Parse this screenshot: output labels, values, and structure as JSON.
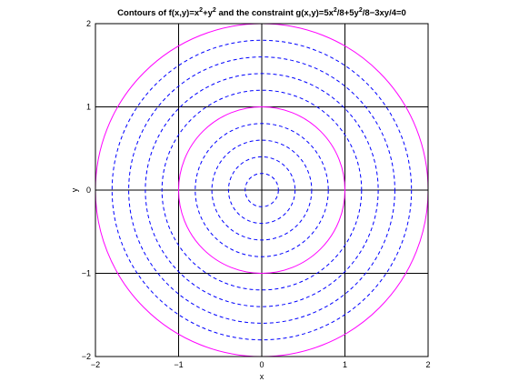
{
  "chart_data": {
    "type": "contour",
    "title": {
      "prefix": "Contours of f(x,y)=x",
      "sup1": "2",
      "mid1": "+y",
      "sup2": "2",
      "mid2": " and the constraint g(x,y)=5x",
      "sup3": "2",
      "mid3": "/8+5y",
      "sup4": "2",
      "suffix": "/8−3xy/4=0"
    },
    "xlabel": "x",
    "ylabel": "y",
    "xlim": [
      -2,
      2
    ],
    "ylim": [
      -2,
      2
    ],
    "xticks": [
      -2,
      -1,
      0,
      1,
      2
    ],
    "yticks": [
      -2,
      -1,
      0,
      1,
      2
    ],
    "xtick_labels": [
      "−2",
      "−1",
      "0",
      "1",
      "2"
    ],
    "ytick_labels": [
      "−2",
      "−1",
      "0",
      "1",
      "2"
    ],
    "grid": true,
    "series": [
      {
        "style": "solid",
        "color": "#ff00ff",
        "radii": [
          1,
          2
        ]
      },
      {
        "style": "dashed",
        "color": "#0000ff",
        "radii": [
          0.2,
          0.4,
          0.6,
          0.8,
          1.2,
          1.4,
          1.6,
          1.8
        ]
      }
    ]
  }
}
